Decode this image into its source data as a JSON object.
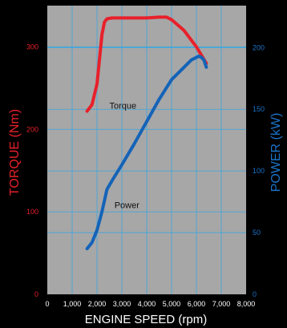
{
  "chart_data": {
    "type": "line",
    "xlabel": "ENGINE SPEED (rpm)",
    "ylabel_left": "TORQUE (Nm)",
    "ylabel_right": "POWER (kW)",
    "xlim": [
      0,
      8000
    ],
    "ylim_left": [
      0,
      350
    ],
    "ylim_right": [
      0,
      234
    ],
    "x_ticks": [
      0,
      1000,
      2000,
      3000,
      4000,
      5000,
      6000,
      7000,
      8000
    ],
    "x_tick_labels": [
      "0",
      "1,000",
      "2,000",
      "3,000",
      "4,000",
      "5,000",
      "6,000",
      "7,000",
      "8,000"
    ],
    "y_left_ticks": [
      0,
      100,
      200,
      300
    ],
    "y_left_tick_labels": [
      "0",
      "100",
      "200",
      "300"
    ],
    "y_right_ticks": [
      0,
      50,
      100,
      150,
      200
    ],
    "y_right_tick_labels": [
      "0",
      "50",
      "100",
      "150",
      "200"
    ],
    "grid": true,
    "plot_background": "#a7a7a7",
    "grid_color": "#3aa6e0",
    "series": [
      {
        "name": "Torque",
        "axis": "left",
        "color": "#e8202a",
        "x": [
          1600,
          1800,
          2000,
          2100,
          2200,
          2300,
          2400,
          2600,
          3000,
          3500,
          4000,
          4500,
          4800,
          5000,
          5500,
          6000,
          6200,
          6400
        ],
        "y": [
          222,
          230,
          255,
          285,
          315,
          330,
          334,
          335,
          335,
          335,
          335,
          336,
          336,
          333,
          320,
          300,
          290,
          280
        ]
      },
      {
        "name": "Power",
        "axis": "right",
        "color": "#1463b8",
        "x": [
          1600,
          1800,
          2000,
          2200,
          2400,
          2600,
          3000,
          3500,
          4000,
          4500,
          5000,
          5500,
          5800,
          6000,
          6100,
          6200,
          6300,
          6400
        ],
        "y": [
          37,
          42,
          52,
          67,
          85,
          92,
          105,
          122,
          140,
          158,
          174,
          184,
          190,
          192,
          193,
          192,
          190,
          184
        ]
      }
    ],
    "annotations": [
      {
        "text": "Torque",
        "x": 2500,
        "y": 225,
        "axis": "left"
      },
      {
        "text": "Power",
        "x": 2700,
        "y": 70,
        "axis": "right"
      }
    ]
  }
}
